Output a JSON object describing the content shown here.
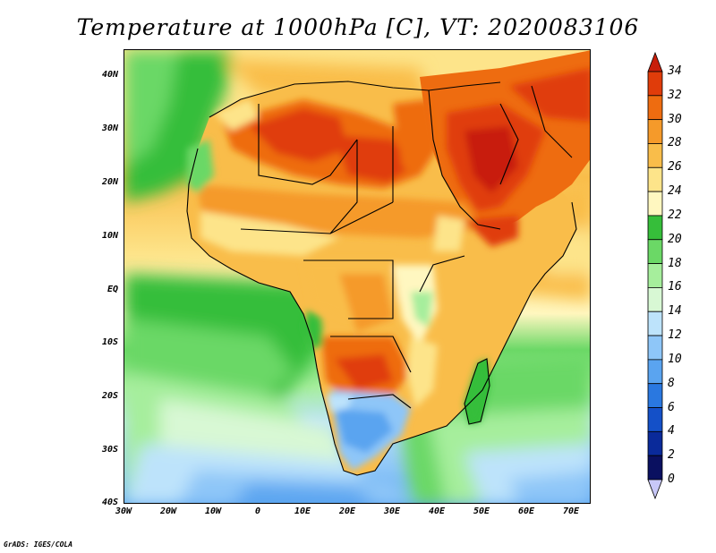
{
  "title": "Temperature at 1000hPa [C], VT: 2020083106",
  "credit": "GrADS: IGES/COLA",
  "map": {
    "lat_labels": [
      "40N",
      "30N",
      "20N",
      "10N",
      "EQ",
      "10S",
      "20S",
      "30S",
      "40S"
    ],
    "lon_labels": [
      "30W",
      "20W",
      "10W",
      "0",
      "10E",
      "20E",
      "30E",
      "40E",
      "50E",
      "60E",
      "70E"
    ],
    "lon_range": [
      -30,
      75
    ],
    "lat_range": [
      -40,
      45
    ]
  },
  "colorbar": {
    "labels": [
      "34",
      "32",
      "30",
      "28",
      "26",
      "24",
      "22",
      "20",
      "18",
      "16",
      "14",
      "12",
      "10",
      "8",
      "6",
      "4",
      "2",
      "0"
    ],
    "colors": [
      "#c81e0a",
      "#e03c0a",
      "#ee6c10",
      "#f59a2a",
      "#f9bd4a",
      "#fde48a",
      "#fff7c0",
      "#36be3a",
      "#6bd866",
      "#a6ee9c",
      "#d8f8d4",
      "#bde3fb",
      "#8ec6f8",
      "#5aa4f0",
      "#2a78e0",
      "#1450c8",
      "#0a2a9a",
      "#0a1060",
      "#c8c8f8"
    ]
  }
}
